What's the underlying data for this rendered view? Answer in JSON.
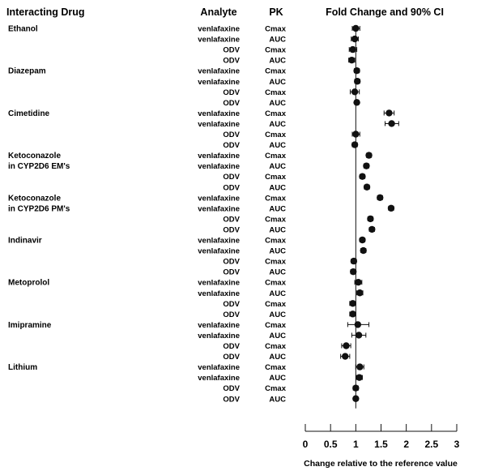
{
  "chart_data": {
    "type": "forest",
    "title": "",
    "headers": {
      "drug": "Interacting Drug",
      "analyte": "Analyte",
      "pk": "PK",
      "effect": "Fold Change and 90% CI"
    },
    "xlabel": "Change relative to the reference value",
    "xlim": [
      0,
      3
    ],
    "xticks": [
      "0",
      "0.5",
      "1",
      "1.5",
      "2",
      "2.5",
      "3"
    ],
    "reference_line": 1,
    "groups": [
      {
        "drug": [
          "Ethanol"
        ],
        "rows": [
          {
            "analyte": "venlafaxine",
            "pk": "Cmax",
            "est": 1.0,
            "lo": 0.93,
            "hi": 1.08
          },
          {
            "analyte": "venlafaxine",
            "pk": "AUC",
            "est": 0.98,
            "lo": 0.91,
            "hi": 1.05
          },
          {
            "analyte": "ODV",
            "pk": "Cmax",
            "est": 0.94,
            "lo": 0.87,
            "hi": 1.02
          },
          {
            "analyte": "ODV",
            "pk": "AUC",
            "est": 0.92,
            "lo": 0.86,
            "hi": 0.98
          }
        ]
      },
      {
        "drug": [
          "Diazepam"
        ],
        "rows": [
          {
            "analyte": "venlafaxine",
            "pk": "Cmax",
            "est": 1.02,
            "lo": 0.97,
            "hi": 1.07
          },
          {
            "analyte": "venlafaxine",
            "pk": "AUC",
            "est": 1.03,
            "lo": 0.98,
            "hi": 1.08
          },
          {
            "analyte": "ODV",
            "pk": "Cmax",
            "est": 0.98,
            "lo": 0.89,
            "hi": 1.07
          },
          {
            "analyte": "ODV",
            "pk": "AUC",
            "est": 1.02,
            "lo": 0.98,
            "hi": 1.06
          }
        ]
      },
      {
        "drug": [
          "Cimetidine"
        ],
        "rows": [
          {
            "analyte": "venlafaxine",
            "pk": "Cmax",
            "est": 1.66,
            "lo": 1.56,
            "hi": 1.76
          },
          {
            "analyte": "venlafaxine",
            "pk": "AUC",
            "est": 1.71,
            "lo": 1.58,
            "hi": 1.85
          },
          {
            "analyte": "ODV",
            "pk": "Cmax",
            "est": 1.0,
            "lo": 0.93,
            "hi": 1.08
          },
          {
            "analyte": "ODV",
            "pk": "AUC",
            "est": 0.98,
            "lo": 0.93,
            "hi": 1.03
          }
        ]
      },
      {
        "drug": [
          "Ketoconazole",
          "in CYP2D6 EM's"
        ],
        "rows": [
          {
            "analyte": "venlafaxine",
            "pk": "Cmax",
            "est": 1.26,
            "lo": 1.21,
            "hi": 1.31
          },
          {
            "analyte": "venlafaxine",
            "pk": "AUC",
            "est": 1.21,
            "lo": 1.16,
            "hi": 1.26
          },
          {
            "analyte": "ODV",
            "pk": "Cmax",
            "est": 1.13,
            "lo": 1.08,
            "hi": 1.18
          },
          {
            "analyte": "ODV",
            "pk": "AUC",
            "est": 1.22,
            "lo": 1.17,
            "hi": 1.27
          }
        ]
      },
      {
        "drug": [
          "Ketoconazole",
          "in CYP2D6 PM's"
        ],
        "rows": [
          {
            "analyte": "venlafaxine",
            "pk": "Cmax",
            "est": 1.48,
            "lo": 1.43,
            "hi": 1.53
          },
          {
            "analyte": "venlafaxine",
            "pk": "AUC",
            "est": 1.7,
            "lo": 1.65,
            "hi": 1.75
          },
          {
            "analyte": "ODV",
            "pk": "Cmax",
            "est": 1.29,
            "lo": 1.24,
            "hi": 1.34
          },
          {
            "analyte": "ODV",
            "pk": "AUC",
            "est": 1.32,
            "lo": 1.27,
            "hi": 1.37
          }
        ]
      },
      {
        "drug": [
          "Indinavir"
        ],
        "rows": [
          {
            "analyte": "venlafaxine",
            "pk": "Cmax",
            "est": 1.13,
            "lo": 1.08,
            "hi": 1.18
          },
          {
            "analyte": "venlafaxine",
            "pk": "AUC",
            "est": 1.15,
            "lo": 1.1,
            "hi": 1.2
          },
          {
            "analyte": "ODV",
            "pk": "Cmax",
            "est": 0.96,
            "lo": 0.91,
            "hi": 1.01
          },
          {
            "analyte": "ODV",
            "pk": "AUC",
            "est": 0.95,
            "lo": 0.9,
            "hi": 1.0
          }
        ]
      },
      {
        "drug": [
          "Metoprolol"
        ],
        "rows": [
          {
            "analyte": "venlafaxine",
            "pk": "Cmax",
            "est": 1.05,
            "lo": 0.98,
            "hi": 1.12
          },
          {
            "analyte": "venlafaxine",
            "pk": "AUC",
            "est": 1.08,
            "lo": 1.02,
            "hi": 1.14
          },
          {
            "analyte": "ODV",
            "pk": "Cmax",
            "est": 0.94,
            "lo": 0.88,
            "hi": 1.0
          },
          {
            "analyte": "ODV",
            "pk": "AUC",
            "est": 0.94,
            "lo": 0.88,
            "hi": 1.0
          }
        ]
      },
      {
        "drug": [
          "Imipramine"
        ],
        "rows": [
          {
            "analyte": "venlafaxine",
            "pk": "Cmax",
            "est": 1.04,
            "lo": 0.84,
            "hi": 1.26
          },
          {
            "analyte": "venlafaxine",
            "pk": "AUC",
            "est": 1.06,
            "lo": 0.92,
            "hi": 1.2
          },
          {
            "analyte": "ODV",
            "pk": "Cmax",
            "est": 0.81,
            "lo": 0.72,
            "hi": 0.9
          },
          {
            "analyte": "ODV",
            "pk": "AUC",
            "est": 0.79,
            "lo": 0.7,
            "hi": 0.88
          }
        ]
      },
      {
        "drug": [
          "Lithium"
        ],
        "rows": [
          {
            "analyte": "venlafaxine",
            "pk": "Cmax",
            "est": 1.08,
            "lo": 1.0,
            "hi": 1.16
          },
          {
            "analyte": "venlafaxine",
            "pk": "AUC",
            "est": 1.07,
            "lo": 1.01,
            "hi": 1.13
          },
          {
            "analyte": "ODV",
            "pk": "Cmax",
            "est": 1.0,
            "lo": 0.95,
            "hi": 1.05
          },
          {
            "analyte": "ODV",
            "pk": "AUC",
            "est": 1.0,
            "lo": 0.96,
            "hi": 1.04
          }
        ]
      }
    ]
  }
}
